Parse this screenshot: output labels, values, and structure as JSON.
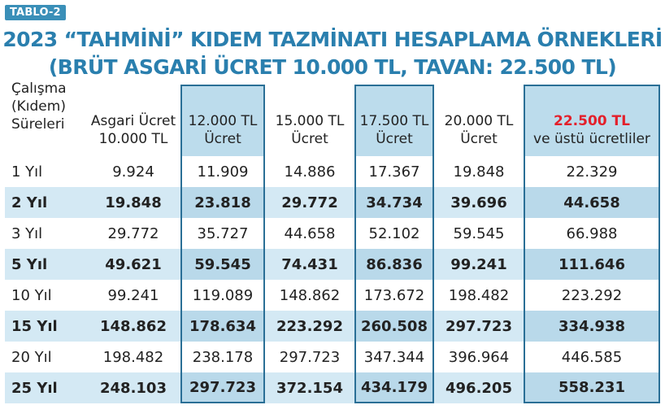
{
  "tag": "TABLO-2",
  "title_line1": "2023 “TAHMİNİ” KIDEM TAZMİNATI HESAPLAMA ÖRNEKLERİ",
  "title_line2": "(BRÜT ASGARİ ÜCRET 10.000 TL, TAVAN: 22.500 TL)",
  "colors": {
    "title": "#2a7fae",
    "highlight": "#bcdcec",
    "accent_red": "#e3202b",
    "border": "#2a6f96"
  },
  "headers": [
    {
      "line1": "Çalışma",
      "line2": "(Kıdem)",
      "line3": "Süreleri"
    },
    {
      "line1": "Asgari Ücret",
      "line2": "10.000 TL"
    },
    {
      "line1": "12.000 TL",
      "line2": "Ücret"
    },
    {
      "line1": "15.000 TL",
      "line2": "Ücret"
    },
    {
      "line1": "17.500 TL",
      "line2": "Ücret"
    },
    {
      "line1": "20.000 TL",
      "line2": "Ücret"
    },
    {
      "line1": "22.500 TL",
      "line2": "ve üstü ücretliler"
    }
  ],
  "rows": [
    {
      "period": "1 Yıl",
      "v": [
        "9.924",
        "11.909",
        "14.886",
        "17.367",
        "19.848",
        "22.329"
      ]
    },
    {
      "period": "2 Yıl",
      "v": [
        "19.848",
        "23.818",
        "29.772",
        "34.734",
        "39.696",
        "44.658"
      ]
    },
    {
      "period": "3 Yıl",
      "v": [
        "29.772",
        "35.727",
        "44.658",
        "52.102",
        "59.545",
        "66.988"
      ]
    },
    {
      "period": "5 Yıl",
      "v": [
        "49.621",
        "59.545",
        "74.431",
        "86.836",
        "99.241",
        "111.646"
      ]
    },
    {
      "period": "10 Yıl",
      "v": [
        "99.241",
        "119.089",
        "148.862",
        "173.672",
        "198.482",
        "223.292"
      ]
    },
    {
      "period": "15 Yıl",
      "v": [
        "148.862",
        "178.634",
        "223.292",
        "260.508",
        "297.723",
        "334.938"
      ]
    },
    {
      "period": "20 Yıl",
      "v": [
        "198.482",
        "238.178",
        "297.723",
        "347.344",
        "396.964",
        "446.585"
      ]
    },
    {
      "period": "25 Yıl",
      "v": [
        "248.103",
        "297.723",
        "372.154",
        "434.179",
        "496.205",
        "558.231"
      ]
    }
  ]
}
